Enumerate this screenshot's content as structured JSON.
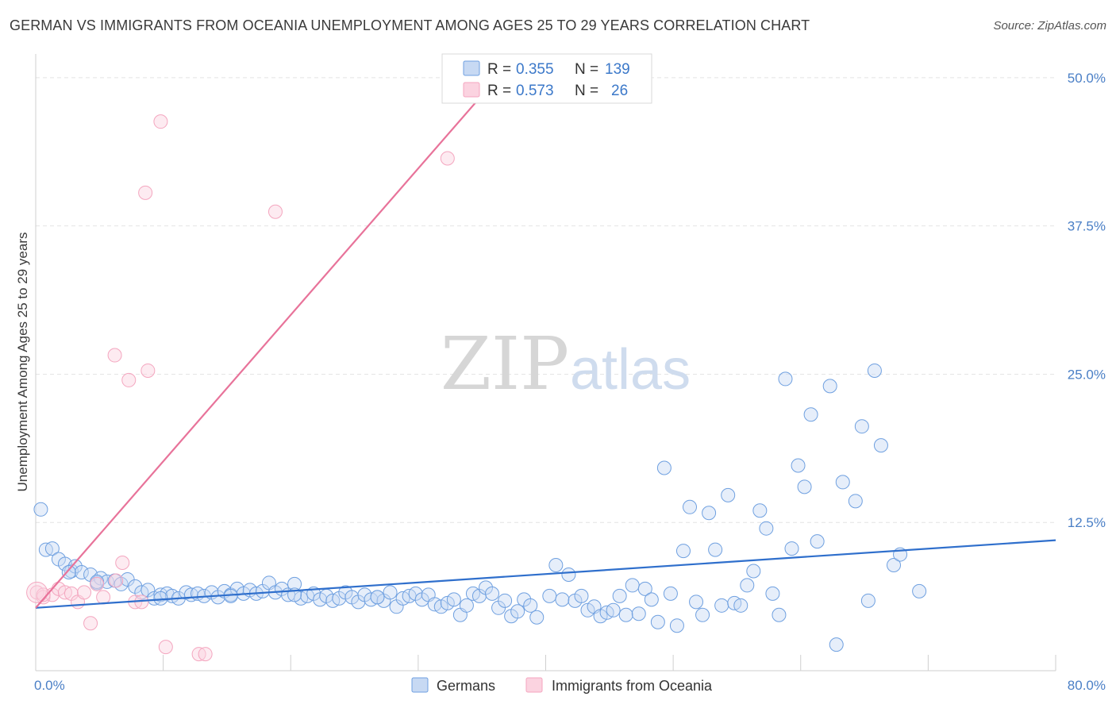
{
  "header": {
    "title": "GERMAN VS IMMIGRANTS FROM OCEANIA UNEMPLOYMENT AMONG AGES 25 TO 29 YEARS CORRELATION CHART",
    "source": "Source: ZipAtlas.com"
  },
  "watermark": {
    "zip": "ZIP",
    "atlas": "atlas"
  },
  "legend_top": {
    "rows": [
      {
        "r_label": "R = ",
        "r_value": "0.355",
        "n_label": "N = ",
        "n_value": "139",
        "color": "#6fa0e0"
      },
      {
        "r_label": "R = ",
        "r_value": "0.573",
        "n_label": "N = ",
        "n_value": "26",
        "color": "#f4a6bf"
      }
    ]
  },
  "chart_data": {
    "type": "scatter",
    "title": "GERMAN VS IMMIGRANTS FROM OCEANIA UNEMPLOYMENT AMONG AGES 25 TO 29 YEARS CORRELATION CHART",
    "xlabel": "",
    "ylabel": "Unemployment Among Ages 25 to 29 years",
    "xlim": [
      0,
      80
    ],
    "ylim": [
      0,
      52
    ],
    "x_tick_labels": [
      "0.0%",
      "80.0%"
    ],
    "y_ticks": [
      12.5,
      25,
      37.5,
      50
    ],
    "y_tick_labels": [
      "12.5%",
      "25.0%",
      "37.5%",
      "50.0%"
    ],
    "grid": true,
    "legend_position": "top-center",
    "series": [
      {
        "name": "Germans",
        "color": "#6fa0e0",
        "line_color": "#2f6fcc",
        "trend": {
          "x": [
            0,
            80
          ],
          "y": [
            5.3,
            11.0
          ]
        },
        "points": [
          [
            0.4,
            13.6
          ],
          [
            0.8,
            10.2
          ],
          [
            1.3,
            10.3
          ],
          [
            1.8,
            9.4
          ],
          [
            2.3,
            9.0
          ],
          [
            2.8,
            8.4
          ],
          [
            3.1,
            8.8
          ],
          [
            3.6,
            8.3
          ],
          [
            4.3,
            8.1
          ],
          [
            4.8,
            7.4
          ],
          [
            5.1,
            7.8
          ],
          [
            5.6,
            7.5
          ],
          [
            6.2,
            7.6
          ],
          [
            6.7,
            7.3
          ],
          [
            7.2,
            7.7
          ],
          [
            7.8,
            7.1
          ],
          [
            8.3,
            6.6
          ],
          [
            8.8,
            6.8
          ],
          [
            9.3,
            6.1
          ],
          [
            9.8,
            6.4
          ],
          [
            10.3,
            6.5
          ],
          [
            10.7,
            6.3
          ],
          [
            11.2,
            6.1
          ],
          [
            11.8,
            6.6
          ],
          [
            12.2,
            6.4
          ],
          [
            12.7,
            6.5
          ],
          [
            13.2,
            6.3
          ],
          [
            13.8,
            6.6
          ],
          [
            14.3,
            6.2
          ],
          [
            14.8,
            6.7
          ],
          [
            15.3,
            6.4
          ],
          [
            15.8,
            6.9
          ],
          [
            16.3,
            6.5
          ],
          [
            16.8,
            6.8
          ],
          [
            17.3,
            6.5
          ],
          [
            17.8,
            6.7
          ],
          [
            18.3,
            7.4
          ],
          [
            18.8,
            6.6
          ],
          [
            19.3,
            6.9
          ],
          [
            19.8,
            6.4
          ],
          [
            20.3,
            7.3
          ],
          [
            20.8,
            6.1
          ],
          [
            21.3,
            6.3
          ],
          [
            21.8,
            6.5
          ],
          [
            22.3,
            6.0
          ],
          [
            22.8,
            6.3
          ],
          [
            23.3,
            5.9
          ],
          [
            23.8,
            6.1
          ],
          [
            24.3,
            6.6
          ],
          [
            24.8,
            6.2
          ],
          [
            25.3,
            5.8
          ],
          [
            25.8,
            6.4
          ],
          [
            26.3,
            6.0
          ],
          [
            26.8,
            6.2
          ],
          [
            27.3,
            5.9
          ],
          [
            27.8,
            6.6
          ],
          [
            28.3,
            5.4
          ],
          [
            28.8,
            6.1
          ],
          [
            29.3,
            6.3
          ],
          [
            29.8,
            6.5
          ],
          [
            30.3,
            6.0
          ],
          [
            30.8,
            6.4
          ],
          [
            31.3,
            5.6
          ],
          [
            31.8,
            5.4
          ],
          [
            32.3,
            5.7
          ],
          [
            32.8,
            6.0
          ],
          [
            33.3,
            4.7
          ],
          [
            33.8,
            5.5
          ],
          [
            34.3,
            6.5
          ],
          [
            34.8,
            6.3
          ],
          [
            35.3,
            7.0
          ],
          [
            35.8,
            6.5
          ],
          [
            36.3,
            5.3
          ],
          [
            36.8,
            5.9
          ],
          [
            37.3,
            4.6
          ],
          [
            37.8,
            5.0
          ],
          [
            38.3,
            6.0
          ],
          [
            38.8,
            5.5
          ],
          [
            39.3,
            4.5
          ],
          [
            40.3,
            6.3
          ],
          [
            40.8,
            8.9
          ],
          [
            41.3,
            6.0
          ],
          [
            41.8,
            8.1
          ],
          [
            42.3,
            5.9
          ],
          [
            42.8,
            6.3
          ],
          [
            43.3,
            5.1
          ],
          [
            43.8,
            5.4
          ],
          [
            44.3,
            4.6
          ],
          [
            44.8,
            4.9
          ],
          [
            45.3,
            5.1
          ],
          [
            45.8,
            6.3
          ],
          [
            46.3,
            4.7
          ],
          [
            46.8,
            7.2
          ],
          [
            47.3,
            4.8
          ],
          [
            47.8,
            6.9
          ],
          [
            48.3,
            6.0
          ],
          [
            48.8,
            4.1
          ],
          [
            49.3,
            17.1
          ],
          [
            49.8,
            6.5
          ],
          [
            50.3,
            3.8
          ],
          [
            50.8,
            10.1
          ],
          [
            51.3,
            13.8
          ],
          [
            51.8,
            5.8
          ],
          [
            52.3,
            4.7
          ],
          [
            52.8,
            13.3
          ],
          [
            53.3,
            10.2
          ],
          [
            53.8,
            5.5
          ],
          [
            54.3,
            14.8
          ],
          [
            54.8,
            5.7
          ],
          [
            55.3,
            5.5
          ],
          [
            55.8,
            7.2
          ],
          [
            56.3,
            8.4
          ],
          [
            56.8,
            13.5
          ],
          [
            57.3,
            12.0
          ],
          [
            57.8,
            6.5
          ],
          [
            58.3,
            4.7
          ],
          [
            58.8,
            24.6
          ],
          [
            59.3,
            10.3
          ],
          [
            59.8,
            17.3
          ],
          [
            60.3,
            15.5
          ],
          [
            60.8,
            21.6
          ],
          [
            61.3,
            10.9
          ],
          [
            62.3,
            24.0
          ],
          [
            62.8,
            2.2
          ],
          [
            63.3,
            15.9
          ],
          [
            64.3,
            14.3
          ],
          [
            64.8,
            20.6
          ],
          [
            65.3,
            5.9
          ],
          [
            65.8,
            25.3
          ],
          [
            66.3,
            19.0
          ],
          [
            67.3,
            8.9
          ],
          [
            67.8,
            9.8
          ],
          [
            69.3,
            6.7
          ],
          [
            2.6,
            8.3
          ],
          [
            4.8,
            7.5
          ],
          [
            9.8,
            6.1
          ],
          [
            15.3,
            6.3
          ],
          [
            20.3,
            6.4
          ],
          [
            26.8,
            6.2
          ]
        ]
      },
      {
        "name": "Immigrants from Oceania",
        "color": "#f4a6bf",
        "line_color": "#e8739a",
        "trend": {
          "x": [
            0,
            36.2
          ],
          "y": [
            5.3,
            50.0
          ]
        },
        "points": [
          [
            0.1,
            6.6
          ],
          [
            0.6,
            6.2
          ],
          [
            1.3,
            6.4
          ],
          [
            1.8,
            6.9
          ],
          [
            2.3,
            6.6
          ],
          [
            2.8,
            6.5
          ],
          [
            3.3,
            5.8
          ],
          [
            3.8,
            6.6
          ],
          [
            4.3,
            4.0
          ],
          [
            4.8,
            7.3
          ],
          [
            5.3,
            6.2
          ],
          [
            6.3,
            7.6
          ],
          [
            6.8,
            9.1
          ],
          [
            7.3,
            24.5
          ],
          [
            7.8,
            5.8
          ],
          [
            8.3,
            5.8
          ],
          [
            8.6,
            40.3
          ],
          [
            8.8,
            25.3
          ],
          [
            9.8,
            46.3
          ],
          [
            10.2,
            2.0
          ],
          [
            12.8,
            1.4
          ],
          [
            13.3,
            1.4
          ],
          [
            18.8,
            38.7
          ],
          [
            32.3,
            43.2
          ],
          [
            0.6,
            6.4
          ],
          [
            6.2,
            26.6
          ]
        ]
      }
    ]
  },
  "legend_bottom": {
    "items": [
      {
        "label": "Germans",
        "color": "#6fa0e0"
      },
      {
        "label": "Immigrants from Oceania",
        "color": "#f4a6bf"
      }
    ]
  }
}
